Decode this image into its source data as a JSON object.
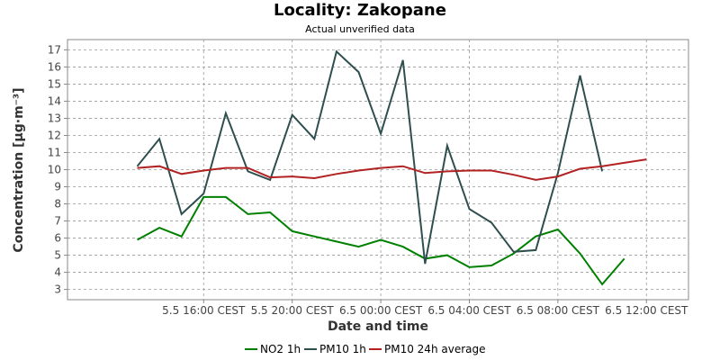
{
  "chart_data": {
    "type": "line",
    "title": "Locality: Zakopane",
    "subtitle": "Actual unverified data",
    "xlabel": "Date and time",
    "ylabel": "Concentration [µg·m⁻³]",
    "ylim": [
      2.4,
      17.6
    ],
    "yticks": [
      3,
      4,
      5,
      6,
      7,
      8,
      9,
      10,
      11,
      12,
      13,
      14,
      15,
      16,
      17
    ],
    "x_hours": [
      13,
      14,
      15,
      16,
      17,
      18,
      19,
      20,
      21,
      22,
      23,
      24,
      25,
      26,
      27,
      28,
      29,
      30,
      31,
      32,
      33,
      34,
      35,
      36
    ],
    "xticks": [
      {
        "hour": 16,
        "label": "5.5 16:00 CEST"
      },
      {
        "hour": 20,
        "label": "5.5 20:00 CEST"
      },
      {
        "hour": 24,
        "label": "6.5 00:00 CEST"
      },
      {
        "hour": 28,
        "label": "6.5 04:00 CEST"
      },
      {
        "hour": 32,
        "label": "6.5 08:00 CEST"
      },
      {
        "hour": 36,
        "label": "6.5 12:00 CEST"
      }
    ],
    "grid": true,
    "legend_position": "bottom",
    "series": [
      {
        "name": "NO2 1h",
        "color": "#008000",
        "values": [
          5.9,
          6.6,
          6.1,
          8.4,
          8.4,
          7.4,
          7.5,
          6.4,
          6.1,
          5.8,
          5.5,
          5.9,
          5.5,
          4.8,
          5.0,
          4.3,
          4.4,
          5.1,
          6.1,
          6.5,
          5.1,
          3.3,
          4.8,
          null
        ]
      },
      {
        "name": "PM10 1h",
        "color": "#2f4f4f",
        "values": [
          10.2,
          11.8,
          7.4,
          8.6,
          13.3,
          9.9,
          9.4,
          13.2,
          11.8,
          16.9,
          15.7,
          12.1,
          16.4,
          4.5,
          11.4,
          7.7,
          6.9,
          5.2,
          5.3,
          9.8,
          15.5,
          9.9,
          null,
          null
        ]
      },
      {
        "name": "PM10 24h average",
        "color": "#b22222",
        "values": [
          10.1,
          10.2,
          9.75,
          9.95,
          10.1,
          10.1,
          9.55,
          9.6,
          9.5,
          9.75,
          9.95,
          10.1,
          10.2,
          9.8,
          9.9,
          9.95,
          9.95,
          9.7,
          9.4,
          9.6,
          10.05,
          10.2,
          10.4,
          10.6
        ]
      }
    ]
  }
}
